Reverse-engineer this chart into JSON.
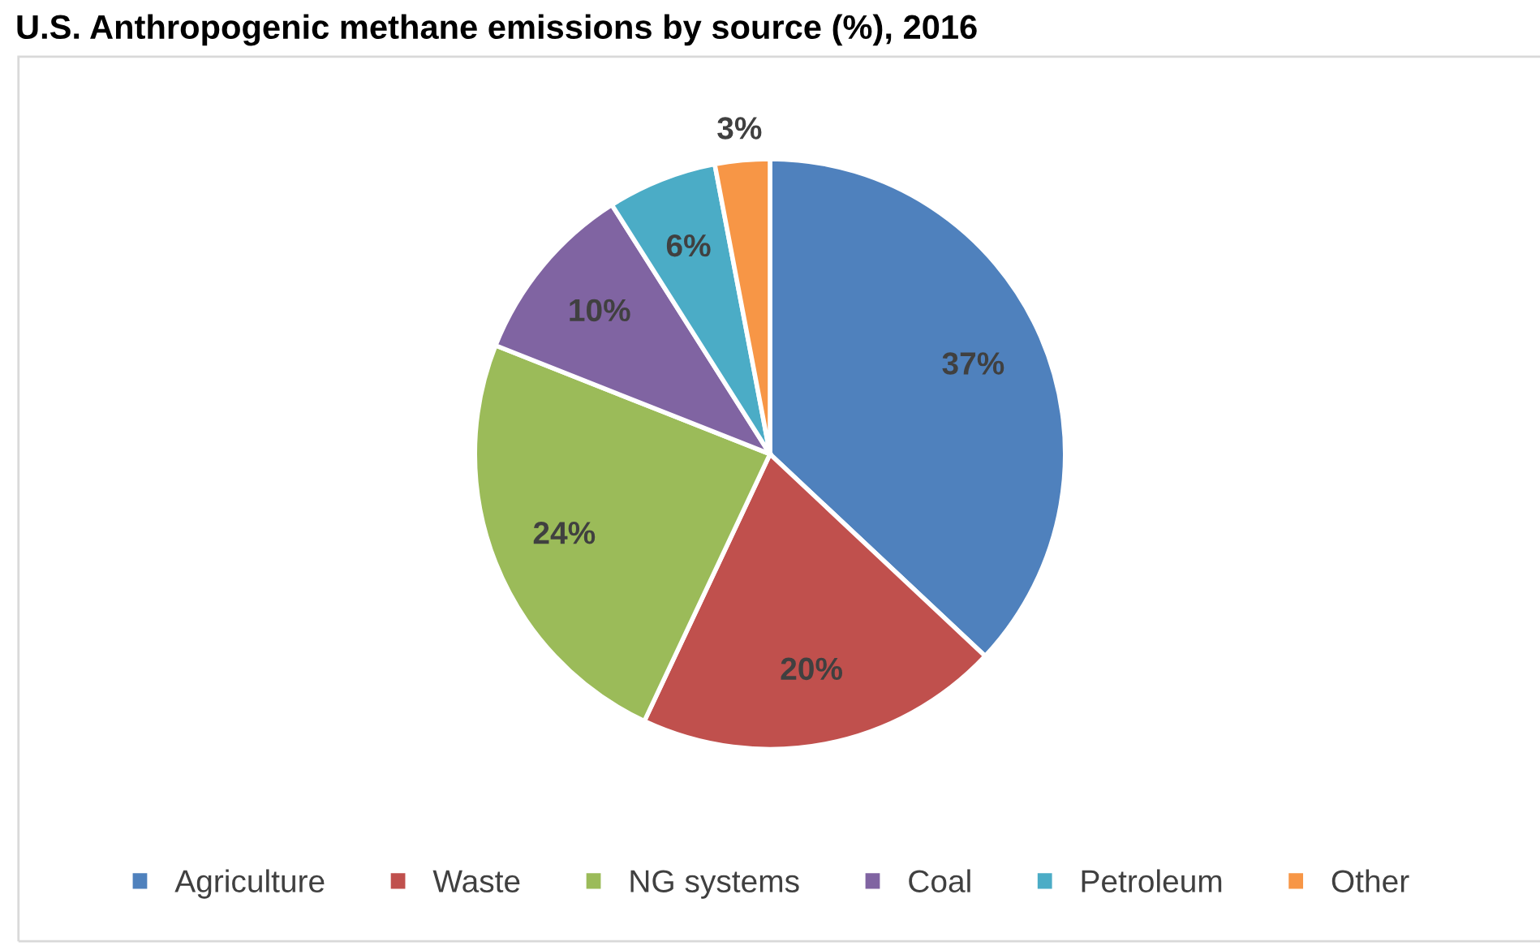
{
  "chart_data": {
    "type": "pie",
    "title": "U.S. Anthropogenic methane emissions by source (%), 2016",
    "categories": [
      "Agriculture",
      "Waste",
      "NG systems",
      "Coal",
      "Petroleum",
      "Other"
    ],
    "values": [
      37,
      20,
      24,
      10,
      6,
      3
    ],
    "colors": [
      "#4f81bd",
      "#c0504d",
      "#9bbb59",
      "#8064a2",
      "#4bacc6",
      "#f79646"
    ],
    "value_labels": [
      "37%",
      "20%",
      "24%",
      "10%",
      "6%",
      "3%"
    ],
    "legend": "bottom"
  }
}
